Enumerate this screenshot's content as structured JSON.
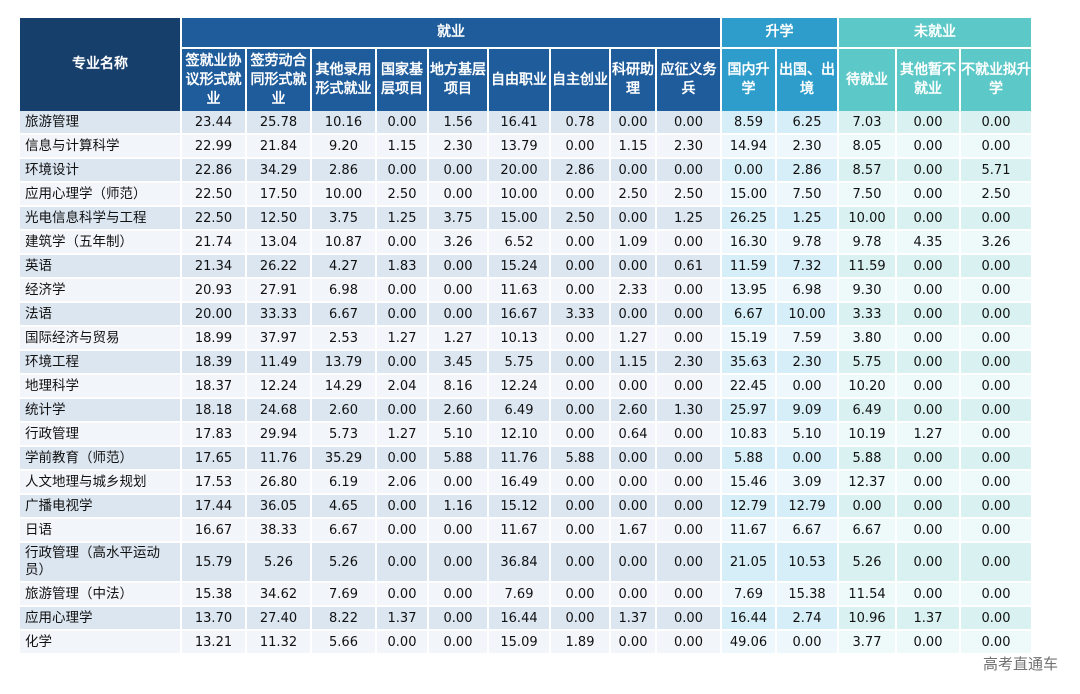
{
  "table": {
    "group_headers": {
      "name": "专业名称",
      "employment": "就业",
      "study": "升学",
      "unemployed": "未就业"
    },
    "sub_headers": {
      "employment": [
        "签就业协议形式就业",
        "签劳动合同形式就业",
        "其他录用形式就业",
        "国家基层项目",
        "地方基层项目",
        "自由职业",
        "自主创业",
        "科研助理",
        "应征义务兵"
      ],
      "study": [
        "国内升学",
        "出国、出境"
      ],
      "unemployed": [
        "待就业",
        "其他暂不就业",
        "不就业拟升学"
      ]
    },
    "rows": [
      {
        "name": "旅游管理",
        "values": [
          "23.44",
          "25.78",
          "10.16",
          "0.00",
          "1.56",
          "16.41",
          "0.78",
          "0.00",
          "0.00",
          "8.59",
          "6.25",
          "7.03",
          "0.00",
          "0.00"
        ]
      },
      {
        "name": "信息与计算科学",
        "values": [
          "22.99",
          "21.84",
          "9.20",
          "1.15",
          "2.30",
          "13.79",
          "0.00",
          "1.15",
          "2.30",
          "14.94",
          "2.30",
          "8.05",
          "0.00",
          "0.00"
        ]
      },
      {
        "name": "环境设计",
        "values": [
          "22.86",
          "34.29",
          "2.86",
          "0.00",
          "0.00",
          "20.00",
          "2.86",
          "0.00",
          "0.00",
          "0.00",
          "2.86",
          "8.57",
          "0.00",
          "5.71"
        ]
      },
      {
        "name": "应用心理学（师范）",
        "values": [
          "22.50",
          "17.50",
          "10.00",
          "2.50",
          "0.00",
          "10.00",
          "0.00",
          "2.50",
          "2.50",
          "15.00",
          "7.50",
          "7.50",
          "0.00",
          "2.50"
        ]
      },
      {
        "name": "光电信息科学与工程",
        "values": [
          "22.50",
          "12.50",
          "3.75",
          "1.25",
          "3.75",
          "15.00",
          "2.50",
          "0.00",
          "1.25",
          "26.25",
          "1.25",
          "10.00",
          "0.00",
          "0.00"
        ]
      },
      {
        "name": "建筑学（五年制）",
        "values": [
          "21.74",
          "13.04",
          "10.87",
          "0.00",
          "3.26",
          "6.52",
          "0.00",
          "1.09",
          "0.00",
          "16.30",
          "9.78",
          "9.78",
          "4.35",
          "3.26"
        ]
      },
      {
        "name": "英语",
        "values": [
          "21.34",
          "26.22",
          "4.27",
          "1.83",
          "0.00",
          "15.24",
          "0.00",
          "0.00",
          "0.61",
          "11.59",
          "7.32",
          "11.59",
          "0.00",
          "0.00"
        ]
      },
      {
        "name": "经济学",
        "values": [
          "20.93",
          "27.91",
          "6.98",
          "0.00",
          "0.00",
          "11.63",
          "0.00",
          "2.33",
          "0.00",
          "13.95",
          "6.98",
          "9.30",
          "0.00",
          "0.00"
        ]
      },
      {
        "name": "法语",
        "values": [
          "20.00",
          "33.33",
          "6.67",
          "0.00",
          "0.00",
          "16.67",
          "3.33",
          "0.00",
          "0.00",
          "6.67",
          "10.00",
          "3.33",
          "0.00",
          "0.00"
        ]
      },
      {
        "name": "国际经济与贸易",
        "values": [
          "18.99",
          "37.97",
          "2.53",
          "1.27",
          "1.27",
          "10.13",
          "0.00",
          "1.27",
          "0.00",
          "15.19",
          "7.59",
          "3.80",
          "0.00",
          "0.00"
        ]
      },
      {
        "name": "环境工程",
        "values": [
          "18.39",
          "11.49",
          "13.79",
          "0.00",
          "3.45",
          "5.75",
          "0.00",
          "1.15",
          "2.30",
          "35.63",
          "2.30",
          "5.75",
          "0.00",
          "0.00"
        ]
      },
      {
        "name": "地理科学",
        "values": [
          "18.37",
          "12.24",
          "14.29",
          "2.04",
          "8.16",
          "12.24",
          "0.00",
          "0.00",
          "0.00",
          "22.45",
          "0.00",
          "10.20",
          "0.00",
          "0.00"
        ]
      },
      {
        "name": "统计学",
        "values": [
          "18.18",
          "24.68",
          "2.60",
          "0.00",
          "2.60",
          "6.49",
          "0.00",
          "2.60",
          "1.30",
          "25.97",
          "9.09",
          "6.49",
          "0.00",
          "0.00"
        ]
      },
      {
        "name": "行政管理",
        "values": [
          "17.83",
          "29.94",
          "5.73",
          "1.27",
          "5.10",
          "12.10",
          "0.00",
          "0.64",
          "0.00",
          "10.83",
          "5.10",
          "10.19",
          "1.27",
          "0.00"
        ]
      },
      {
        "name": "学前教育（师范）",
        "values": [
          "17.65",
          "11.76",
          "35.29",
          "0.00",
          "5.88",
          "11.76",
          "5.88",
          "0.00",
          "0.00",
          "5.88",
          "0.00",
          "5.88",
          "0.00",
          "0.00"
        ]
      },
      {
        "name": "人文地理与城乡规划",
        "values": [
          "17.53",
          "26.80",
          "6.19",
          "2.06",
          "0.00",
          "16.49",
          "0.00",
          "0.00",
          "0.00",
          "15.46",
          "3.09",
          "12.37",
          "0.00",
          "0.00"
        ]
      },
      {
        "name": "广播电视学",
        "values": [
          "17.44",
          "36.05",
          "4.65",
          "0.00",
          "1.16",
          "15.12",
          "0.00",
          "0.00",
          "0.00",
          "12.79",
          "12.79",
          "0.00",
          "0.00",
          "0.00"
        ]
      },
      {
        "name": "日语",
        "values": [
          "16.67",
          "38.33",
          "6.67",
          "0.00",
          "0.00",
          "11.67",
          "0.00",
          "1.67",
          "0.00",
          "11.67",
          "6.67",
          "6.67",
          "0.00",
          "0.00"
        ]
      },
      {
        "name": "行政管理（高水平运动员）",
        "values": [
          "15.79",
          "5.26",
          "5.26",
          "0.00",
          "0.00",
          "36.84",
          "0.00",
          "0.00",
          "0.00",
          "21.05",
          "10.53",
          "5.26",
          "0.00",
          "0.00"
        ]
      },
      {
        "name": "旅游管理（中法）",
        "values": [
          "15.38",
          "34.62",
          "7.69",
          "0.00",
          "0.00",
          "7.69",
          "0.00",
          "0.00",
          "0.00",
          "7.69",
          "15.38",
          "11.54",
          "0.00",
          "0.00"
        ]
      },
      {
        "name": "应用心理学",
        "values": [
          "13.70",
          "27.40",
          "8.22",
          "1.37",
          "0.00",
          "16.44",
          "0.00",
          "1.37",
          "0.00",
          "16.44",
          "2.74",
          "10.96",
          "1.37",
          "0.00"
        ]
      },
      {
        "name": "化学",
        "values": [
          "13.21",
          "11.32",
          "5.66",
          "0.00",
          "0.00",
          "15.09",
          "1.89",
          "0.00",
          "0.00",
          "49.06",
          "0.00",
          "3.77",
          "0.00",
          "0.00"
        ]
      }
    ]
  },
  "watermark": "高考直通车"
}
